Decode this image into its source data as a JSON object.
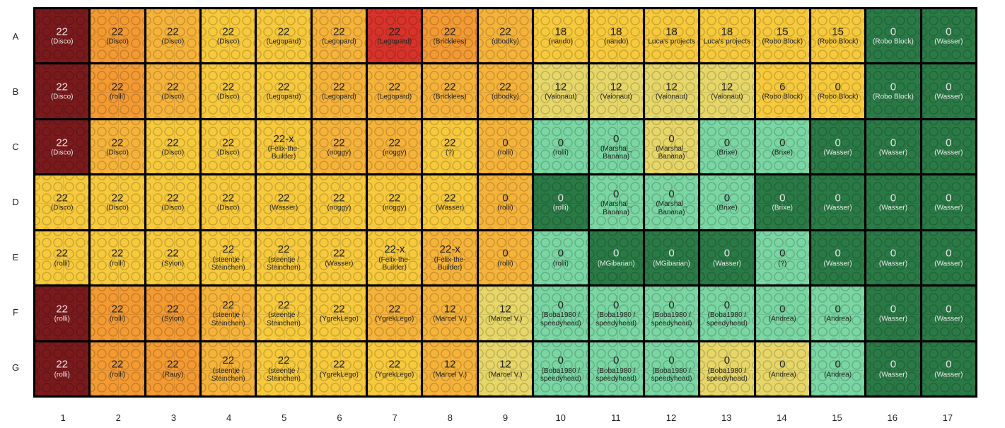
{
  "rows": [
    "A",
    "B",
    "C",
    "D",
    "E",
    "F",
    "G"
  ],
  "cols": [
    "1",
    "2",
    "3",
    "4",
    "5",
    "6",
    "7",
    "8",
    "9",
    "10",
    "11",
    "12",
    "13",
    "14",
    "15",
    "16",
    "17"
  ],
  "colors": {
    "darkred": "#7a1a1c",
    "orange": "#f39a32",
    "lightorange": "#f6b33a",
    "yellow": "#f7c93c",
    "red": "#d8332a",
    "lightgreen": "#7ad6a3",
    "darkgreen": "#2a7a46",
    "paleyellow": "#e7d769"
  },
  "cells": [
    [
      {
        "value": "22",
        "owner": "(Disco)",
        "color": "darkred"
      },
      {
        "value": "22",
        "owner": "(Disco)",
        "color": "orange"
      },
      {
        "value": "22",
        "owner": "(Disco)",
        "color": "lightorange"
      },
      {
        "value": "22",
        "owner": "(Disco)",
        "color": "yellow"
      },
      {
        "value": "22",
        "owner": "(Legopard)",
        "color": "yellow"
      },
      {
        "value": "22",
        "owner": "(Legopard)",
        "color": "lightorange"
      },
      {
        "value": "22",
        "owner": "(Legopard)",
        "color": "red"
      },
      {
        "value": "22",
        "owner": "(Bricklees)",
        "color": "orange"
      },
      {
        "value": "22",
        "owner": "(dbodky)",
        "color": "lightorange"
      },
      {
        "value": "18",
        "owner": "(nando)",
        "color": "yellow"
      },
      {
        "value": "18",
        "owner": "(nando)",
        "color": "yellow"
      },
      {
        "value": "18",
        "owner": "Luca's projects",
        "color": "yellow"
      },
      {
        "value": "18",
        "owner": "Luca's projects",
        "color": "yellow"
      },
      {
        "value": "15",
        "owner": "(Robo Block)",
        "color": "yellow"
      },
      {
        "value": "15",
        "owner": "(Robo Block)",
        "color": "yellow"
      },
      {
        "value": "0",
        "owner": "(Robo Block)",
        "color": "darkgreen"
      },
      {
        "value": "0",
        "owner": "(Wasser)",
        "color": "darkgreen"
      }
    ],
    [
      {
        "value": "22",
        "owner": "(Disco)",
        "color": "darkred"
      },
      {
        "value": "22",
        "owner": "(rolli)",
        "color": "orange"
      },
      {
        "value": "22",
        "owner": "(Disco)",
        "color": "lightorange"
      },
      {
        "value": "22",
        "owner": "(Disco)",
        "color": "yellow"
      },
      {
        "value": "22",
        "owner": "(Legopard)",
        "color": "yellow"
      },
      {
        "value": "22",
        "owner": "(Legopard)",
        "color": "lightorange"
      },
      {
        "value": "22",
        "owner": "(Legopard)",
        "color": "lightorange"
      },
      {
        "value": "22",
        "owner": "(Bricklees)",
        "color": "lightorange"
      },
      {
        "value": "22",
        "owner": "(dbodky)",
        "color": "lightorange"
      },
      {
        "value": "12",
        "owner": "(Vaionaut)",
        "color": "paleyellow"
      },
      {
        "value": "12",
        "owner": "(Vaionaut)",
        "color": "paleyellow"
      },
      {
        "value": "12",
        "owner": "(Vaionaut)",
        "color": "paleyellow"
      },
      {
        "value": "12",
        "owner": "(Vaionaut)",
        "color": "paleyellow"
      },
      {
        "value": "6",
        "owner": "(Robo Block)",
        "color": "yellow"
      },
      {
        "value": "0",
        "owner": "(Robo Block)",
        "color": "yellow"
      },
      {
        "value": "0",
        "owner": "(Robo Block)",
        "color": "darkgreen"
      },
      {
        "value": "0",
        "owner": "(Wasser)",
        "color": "darkgreen"
      }
    ],
    [
      {
        "value": "22",
        "owner": "(Disco)",
        "color": "darkred"
      },
      {
        "value": "22",
        "owner": "(Disco)",
        "color": "lightorange"
      },
      {
        "value": "22",
        "owner": "(Disco)",
        "color": "yellow"
      },
      {
        "value": "22",
        "owner": "(Disco)",
        "color": "yellow"
      },
      {
        "value": "22-x",
        "owner": "(Felix-the-Builder)",
        "color": "yellow"
      },
      {
        "value": "22",
        "owner": "(noggy)",
        "color": "lightorange"
      },
      {
        "value": "22",
        "owner": "(noggy)",
        "color": "lightorange"
      },
      {
        "value": "22",
        "owner": "(?)",
        "color": "yellow"
      },
      {
        "value": "0",
        "owner": "(rolli)",
        "color": "lightorange"
      },
      {
        "value": "0",
        "owner": "(rolli)",
        "color": "lightgreen"
      },
      {
        "value": "0",
        "owner": "(Marshal_ Banana)",
        "color": "lightgreen"
      },
      {
        "value": "0",
        "owner": "(Marshal_ Banana)",
        "color": "paleyellow"
      },
      {
        "value": "0",
        "owner": "(Brixe)",
        "color": "lightgreen"
      },
      {
        "value": "0",
        "owner": "(Brixe)",
        "color": "lightgreen"
      },
      {
        "value": "0",
        "owner": "(Wasser)",
        "color": "darkgreen"
      },
      {
        "value": "0",
        "owner": "(Wasser)",
        "color": "darkgreen"
      },
      {
        "value": "0",
        "owner": "(Wasser)",
        "color": "darkgreen"
      }
    ],
    [
      {
        "value": "22",
        "owner": "(Disco)",
        "color": "yellow"
      },
      {
        "value": "22",
        "owner": "(Disco)",
        "color": "yellow"
      },
      {
        "value": "22",
        "owner": "(Disco)",
        "color": "yellow"
      },
      {
        "value": "22",
        "owner": "(Disco)",
        "color": "yellow"
      },
      {
        "value": "22",
        "owner": "(Wasser)",
        "color": "yellow"
      },
      {
        "value": "22",
        "owner": "(noggy)",
        "color": "yellow"
      },
      {
        "value": "22",
        "owner": "(noggy)",
        "color": "yellow"
      },
      {
        "value": "22",
        "owner": "(Wasser)",
        "color": "yellow"
      },
      {
        "value": "0",
        "owner": "(rolli)",
        "color": "lightorange"
      },
      {
        "value": "0",
        "owner": "(rolli)",
        "color": "darkgreen"
      },
      {
        "value": "0",
        "owner": "(Marshal_ Banana)",
        "color": "lightgreen"
      },
      {
        "value": "0",
        "owner": "(Marshal_ Banana)",
        "color": "lightgreen"
      },
      {
        "value": "0",
        "owner": "(Brixe)",
        "color": "lightgreen"
      },
      {
        "value": "0",
        "owner": "(Brixe)",
        "color": "darkgreen"
      },
      {
        "value": "0",
        "owner": "(Wasser)",
        "color": "darkgreen"
      },
      {
        "value": "0",
        "owner": "(Wasser)",
        "color": "darkgreen"
      },
      {
        "value": "0",
        "owner": "(Wasser)",
        "color": "darkgreen"
      }
    ],
    [
      {
        "value": "22",
        "owner": "(rolli)",
        "color": "yellow"
      },
      {
        "value": "22",
        "owner": "(rolli)",
        "color": "yellow"
      },
      {
        "value": "22",
        "owner": "(Sylon)",
        "color": "yellow"
      },
      {
        "value": "22",
        "owner": "(steentje / Steinchen)",
        "color": "yellow"
      },
      {
        "value": "22",
        "owner": "(steentje / Steinchen)",
        "color": "yellow"
      },
      {
        "value": "22",
        "owner": "(Wasser)",
        "color": "yellow"
      },
      {
        "value": "22-x",
        "owner": "(Felix-the-Builder)",
        "color": "yellow"
      },
      {
        "value": "22-x",
        "owner": "(Felix-the-Builder)",
        "color": "lightorange"
      },
      {
        "value": "0",
        "owner": "(rolli)",
        "color": "lightorange"
      },
      {
        "value": "0",
        "owner": "(rolli)",
        "color": "lightgreen"
      },
      {
        "value": "0",
        "owner": "(MGibarian)",
        "color": "darkgreen"
      },
      {
        "value": "0",
        "owner": "(MGibarian)",
        "color": "darkgreen"
      },
      {
        "value": "0",
        "owner": "(Wasser)",
        "color": "darkgreen"
      },
      {
        "value": "0",
        "owner": "(?)",
        "color": "lightgreen"
      },
      {
        "value": "0",
        "owner": "(Wasser)",
        "color": "darkgreen"
      },
      {
        "value": "0",
        "owner": "(Wasser)",
        "color": "darkgreen"
      },
      {
        "value": "0",
        "owner": "(Wasser)",
        "color": "darkgreen"
      }
    ],
    [
      {
        "value": "22",
        "owner": "(rolli)",
        "color": "darkred"
      },
      {
        "value": "22",
        "owner": "(rolli)",
        "color": "orange"
      },
      {
        "value": "22",
        "owner": "(Sylon)",
        "color": "orange"
      },
      {
        "value": "22",
        "owner": "(steentje / Steinchen)",
        "color": "lightorange"
      },
      {
        "value": "22",
        "owner": "(steentje / Steinchen)",
        "color": "yellow"
      },
      {
        "value": "22",
        "owner": "(YgrekLego)",
        "color": "yellow"
      },
      {
        "value": "22",
        "owner": "(YgrekLego)",
        "color": "lightorange"
      },
      {
        "value": "12",
        "owner": "(Marcel V.)",
        "color": "lightorange"
      },
      {
        "value": "12",
        "owner": "(Marcel V.)",
        "color": "paleyellow"
      },
      {
        "value": "0",
        "owner": "(Boba1980 / speedyhead)",
        "color": "lightgreen"
      },
      {
        "value": "0",
        "owner": "(Boba1980 / speedyhead)",
        "color": "lightgreen"
      },
      {
        "value": "0",
        "owner": "(Boba1980 / speedyhead)",
        "color": "lightgreen"
      },
      {
        "value": "0",
        "owner": "(Boba1980 / speedyhead)",
        "color": "lightgreen"
      },
      {
        "value": "0",
        "owner": "(Andrea)",
        "color": "lightgreen"
      },
      {
        "value": "0",
        "owner": "(Andrea)",
        "color": "lightgreen"
      },
      {
        "value": "0",
        "owner": "(Wasser)",
        "color": "darkgreen"
      },
      {
        "value": "0",
        "owner": "(Wasser)",
        "color": "darkgreen"
      }
    ],
    [
      {
        "value": "22",
        "owner": "(rolli)",
        "color": "darkred"
      },
      {
        "value": "22",
        "owner": "(rolli)",
        "color": "orange"
      },
      {
        "value": "22",
        "owner": "(Rauy)",
        "color": "orange"
      },
      {
        "value": "22",
        "owner": "(steentje / Steinchen)",
        "color": "lightorange"
      },
      {
        "value": "22",
        "owner": "(steentje / Steinchen)",
        "color": "yellow"
      },
      {
        "value": "22",
        "owner": "(YgrekLego)",
        "color": "yellow"
      },
      {
        "value": "22",
        "owner": "(YgrekLego)",
        "color": "yellow"
      },
      {
        "value": "12",
        "owner": "(Marcel V.)",
        "color": "lightorange"
      },
      {
        "value": "12",
        "owner": "(Marcel V.)",
        "color": "paleyellow"
      },
      {
        "value": "0",
        "owner": "(Boba1980 / speedyhead)",
        "color": "lightgreen"
      },
      {
        "value": "0",
        "owner": "(Boba1980 / speedyhead)",
        "color": "lightgreen"
      },
      {
        "value": "0",
        "owner": "(Boba1980 / speedyhead)",
        "color": "lightgreen"
      },
      {
        "value": "0",
        "owner": "(Boba1980 / speedyhead)",
        "color": "paleyellow"
      },
      {
        "value": "0",
        "owner": "(Andrea)",
        "color": "paleyellow"
      },
      {
        "value": "0",
        "owner": "(Andrea)",
        "color": "lightgreen"
      },
      {
        "value": "0",
        "owner": "(Wasser)",
        "color": "darkgreen"
      },
      {
        "value": "0",
        "owner": "(Wasser)",
        "color": "darkgreen"
      }
    ]
  ]
}
